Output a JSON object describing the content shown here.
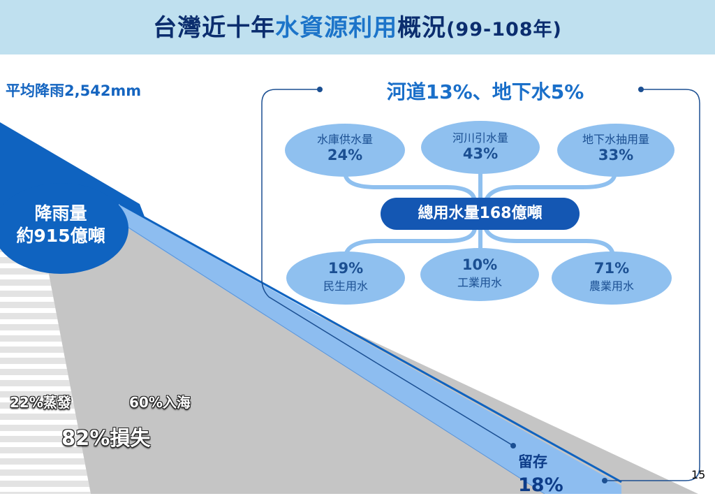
{
  "title": {
    "part1": "台灣近十年",
    "part2": "水資源利用",
    "part3": "概況",
    "part4": "(99-108年)"
  },
  "avg_rainfall": "平均降雨2,542mm",
  "rainfall": {
    "line1": "降雨量",
    "line2": "約915億噸"
  },
  "panel_title": "河道13%、地下水5%",
  "sources": [
    {
      "label": "水庫供水量",
      "pct": "24%"
    },
    {
      "label": "河川引水量",
      "pct": "43%"
    },
    {
      "label": "地下水抽用量",
      "pct": "33%"
    }
  ],
  "total_use": "總用水量168億噸",
  "uses": [
    {
      "pct": "19%",
      "label": "民生用水"
    },
    {
      "pct": "10%",
      "label": "工業用水"
    },
    {
      "pct": "71%",
      "label": "農業用水"
    }
  ],
  "evaporation": "22%蒸發",
  "to_sea": "60%入海",
  "loss": "82%損失",
  "storage": {
    "label": "留存",
    "pct": "18%"
  },
  "page_number": "15",
  "colors": {
    "title_band": "#bfe0ef",
    "title_text": "#0b2d6e",
    "accent_blue": "#1c74c9",
    "dark_blue": "#0f63c0",
    "light_blue": "#8fc0ef",
    "gray": "#c5c5c5"
  }
}
